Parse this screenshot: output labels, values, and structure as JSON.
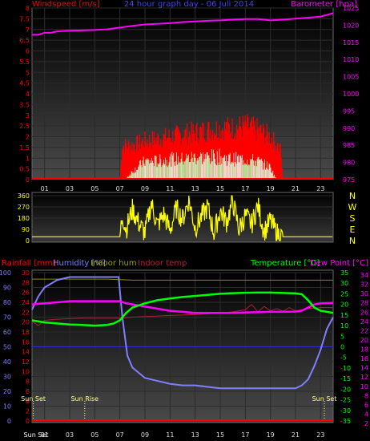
{
  "chart_data": [
    {
      "type": "line",
      "title": "24 hour graph day - 06 Juli 2014",
      "ylabel": "Windspeed [m/s]",
      "y2label": "Barometer [hpa]",
      "ylim": [
        0,
        8
      ],
      "y2lim": [
        975,
        1025
      ],
      "yticks": [
        "8",
        "7.5",
        "7",
        "6.5",
        "6",
        "5.5",
        "5",
        "4.5",
        "4",
        "3.5",
        "3",
        "2.5",
        "2",
        "1.5",
        "1",
        "0.5",
        "0"
      ],
      "y2ticks": [
        "1025",
        "1020",
        "1015",
        "1010",
        "1005",
        "1000",
        "995",
        "990",
        "985",
        "980",
        "975"
      ],
      "xticks": [
        "01",
        "03",
        "05",
        "07",
        "09",
        "11",
        "13",
        "15",
        "17",
        "19",
        "21",
        "23"
      ],
      "series": [
        {
          "name": "Barometer",
          "color": "#ff00ff",
          "x": [
            0,
            0.5,
            1,
            1.5,
            2,
            3,
            4,
            5,
            6,
            7,
            8,
            9,
            10,
            11,
            12,
            13,
            14,
            15,
            16,
            17,
            18,
            19,
            20,
            21,
            22,
            23,
            24
          ],
          "values": [
            1017.2,
            1017.2,
            1017.8,
            1017.8,
            1018.2,
            1018.4,
            1018.5,
            1018.6,
            1018.8,
            1019.3,
            1019.8,
            1020.2,
            1020.4,
            1020.6,
            1020.9,
            1021.1,
            1021.3,
            1021.4,
            1021.6,
            1021.8,
            1021.8,
            1021.4,
            1021.6,
            1021.9,
            1022.2,
            1022.5,
            1023.5
          ]
        },
        {
          "name": "Gust",
          "color": "#ff0000",
          "x": [
            0,
            7,
            7.2,
            8,
            9,
            10,
            11,
            12,
            13,
            14,
            15,
            16,
            17,
            18,
            19,
            19.8,
            20,
            24
          ],
          "values": [
            0,
            0,
            1.6,
            1.6,
            1.8,
            1.9,
            2.0,
            2.1,
            2.2,
            2.3,
            2.4,
            2.4,
            2.5,
            2.3,
            2.0,
            1.4,
            0,
            0
          ]
        },
        {
          "name": "Windspeed",
          "color": "#ffffff",
          "x": [
            0,
            7.4,
            8,
            9,
            10,
            11,
            12,
            13,
            14,
            15,
            16,
            17,
            18,
            19,
            19.5,
            24
          ],
          "values": [
            0,
            0,
            0.4,
            0.9,
            0.9,
            1.0,
            1.0,
            1.1,
            1.1,
            1.1,
            1.0,
            1.0,
            0.9,
            0.6,
            0,
            0
          ]
        }
      ]
    },
    {
      "type": "scatter",
      "ylabel": "Wind direction",
      "yticks": [
        "360",
        "270",
        "180",
        "90",
        "0"
      ],
      "compass": [
        "N",
        "W",
        "S",
        "E",
        "N"
      ],
      "series": [
        {
          "name": "Wind direction",
          "color": "#ffff00",
          "x": [
            0,
            7,
            7.2,
            7.5,
            8,
            8.5,
            9,
            9.5,
            10,
            10.5,
            11,
            11.5,
            12,
            12.5,
            13,
            13.5,
            14,
            14.5,
            15,
            15.5,
            16,
            16.5,
            17,
            17.5,
            18,
            18.5,
            19,
            19.5,
            20,
            24
          ],
          "values": [
            30,
            30,
            200,
            90,
            250,
            140,
            60,
            300,
            120,
            210,
            80,
            260,
            170,
            330,
            100,
            190,
            270,
            60,
            240,
            150,
            310,
            90,
            200,
            130,
            280,
            70,
            160,
            60,
            30,
            30
          ]
        }
      ]
    },
    {
      "type": "line",
      "labels": {
        "rainfall": "Rainfall [mm]",
        "humidity": "Humidity [%]",
        "indoor_hum": "Indoor hum",
        "indoor_temp": "Indoor temp",
        "temperature": "Temperature [°C]",
        "dew_point": "Dew Point [°C]"
      },
      "ticks_humidity": [
        "100",
        "90",
        "80",
        "70",
        "60",
        "50",
        "40",
        "30",
        "20",
        "10",
        "0"
      ],
      "ticks_rain": [
        "30",
        "28",
        "26",
        "24",
        "22",
        "20",
        "18",
        "16",
        "14",
        "12",
        "10",
        "8",
        "6",
        "4",
        "2",
        "0"
      ],
      "ticks_temp": [
        "35",
        "30",
        "25",
        "20",
        "15",
        "10",
        "5",
        "0",
        "-5",
        "-10",
        "-15",
        "-20",
        "-25",
        "-30",
        "-35"
      ],
      "ticks_dew": [
        "34",
        "32",
        "30",
        "28",
        "26",
        "24",
        "22",
        "20",
        "18",
        "16",
        "14",
        "12",
        "10",
        "8",
        "6",
        "4",
        "2"
      ],
      "xticks": [
        "Sun Set",
        "01",
        "03",
        "05",
        "07",
        "09",
        "11",
        "13",
        "15",
        "17",
        "19",
        "21",
        "23"
      ],
      "sun_events": [
        {
          "label": "Sun Set",
          "x": 0.1
        },
        {
          "label": "Sun Rise",
          "x": 4.2
        },
        {
          "label": "Sun Set",
          "x": 23.3
        }
      ],
      "series": [
        {
          "name": "Humidity",
          "color": "#7f7fff",
          "x": [
            0,
            0.5,
            1,
            2,
            3,
            4,
            5,
            6,
            6.5,
            6.9,
            7.2,
            7.6,
            8,
            9,
            10,
            11,
            12,
            13,
            14,
            15,
            16,
            17,
            18,
            19,
            20,
            21,
            21.5,
            22,
            22.5,
            23,
            23.5,
            24
          ],
          "values": [
            75,
            84,
            90,
            95,
            97,
            97,
            97,
            97,
            97,
            97,
            70,
            44,
            36,
            29,
            27,
            25,
            24,
            24,
            23,
            22,
            22,
            22,
            22,
            22,
            22,
            22,
            24,
            28,
            37,
            48,
            62,
            70
          ]
        },
        {
          "name": "Temperature",
          "color": "#00ff00",
          "x": [
            0,
            1,
            2,
            3,
            4,
            5,
            6,
            6.5,
            7,
            7.5,
            8,
            9,
            10,
            11,
            12,
            13,
            14,
            15,
            16,
            17,
            18,
            19,
            20,
            21,
            21.5,
            22,
            22.5,
            23,
            24
          ],
          "values": [
            12.5,
            11.5,
            11,
            10.5,
            10.3,
            10,
            10.3,
            11,
            12.5,
            16,
            18.5,
            20.5,
            22,
            22.8,
            23.5,
            24,
            24.5,
            25,
            25.3,
            25.5,
            25.6,
            25.6,
            25.4,
            25.2,
            24.8,
            22,
            18.5,
            17,
            16
          ]
        },
        {
          "name": "Dew Point",
          "color": "#ff00ff",
          "x": [
            0,
            1,
            2,
            3,
            4,
            5,
            6,
            7,
            7.5,
            8,
            9,
            10,
            11,
            12,
            13,
            14,
            15,
            16,
            17,
            18,
            19,
            20,
            21,
            21.5,
            22,
            22.5,
            23,
            24
          ],
          "values": [
            20,
            20.5,
            21,
            21.5,
            21.5,
            21.5,
            21.5,
            21.5,
            20.5,
            20,
            19,
            18,
            17,
            16.5,
            16,
            16,
            16,
            16,
            16.2,
            16.3,
            16.5,
            16.5,
            16.6,
            17,
            18.5,
            20,
            20.5,
            20.7
          ]
        },
        {
          "name": "Indoor temp",
          "color": "#b01e36",
          "x": [
            0,
            0.5,
            1,
            2,
            3,
            4,
            5,
            6,
            7,
            8,
            9,
            10,
            11,
            12,
            13,
            14,
            15,
            16,
            17,
            17.5,
            18,
            18.5,
            19,
            19.5,
            20,
            20.5,
            21,
            22,
            23,
            24
          ],
          "values": [
            12,
            10,
            12.5,
            13,
            13.3,
            13.5,
            13.5,
            13.5,
            13.5,
            14,
            14.3,
            14.5,
            14.8,
            15,
            15.2,
            15.5,
            16,
            16.5,
            17.5,
            20,
            16.5,
            19,
            17,
            18,
            16.8,
            18.5,
            17,
            18,
            18.5,
            18.5
          ]
        },
        {
          "name": "Indoor hum",
          "color": "#8a8a00",
          "x": [
            0,
            2,
            4,
            6,
            8,
            10,
            12,
            14,
            16,
            18,
            20,
            22,
            24
          ],
          "values": [
            29,
            29,
            29,
            29,
            28.8,
            28.8,
            28.8,
            28.8,
            28.8,
            28.8,
            28.8,
            28.8,
            28.8
          ]
        },
        {
          "name": "Rainfall",
          "color": "#ff0000",
          "x": [
            0,
            24
          ],
          "values": [
            0,
            0
          ]
        }
      ]
    }
  ]
}
